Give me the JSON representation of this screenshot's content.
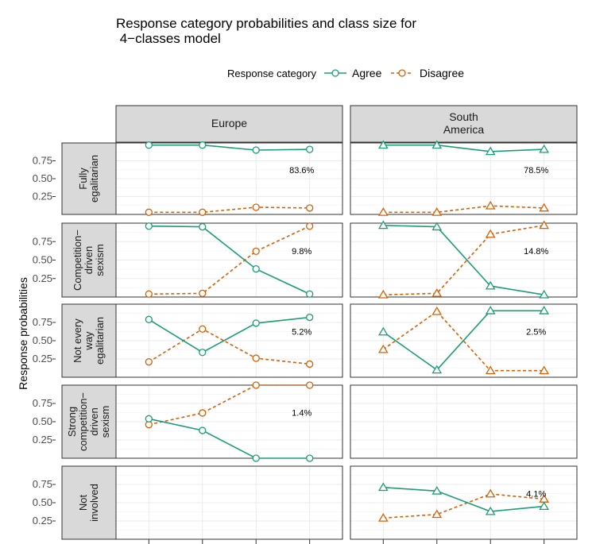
{
  "chart_data": {
    "type": "line",
    "title": "Response category probabilities and class size for\n 4−classes model",
    "ylabel": "Response probabilities",
    "legend": {
      "title": "Response category",
      "placement": "top",
      "entries": [
        {
          "name": "Agree",
          "color": "#1b9e77",
          "linestyle": "solid"
        },
        {
          "name": "Disagree",
          "color": "#d95f02",
          "linestyle": "dashed"
        }
      ]
    },
    "columns": [
      {
        "label": "Europe",
        "marker": "circle"
      },
      {
        "label": "South\nAmerica",
        "marker": "triangle"
      }
    ],
    "rows": [
      {
        "label": "Fully\negalitarian"
      },
      {
        "label": "Competition−\ndriven\nsexism"
      },
      {
        "label": "Not every\nway\negalitarian"
      },
      {
        "label": "Strong\ncompetition−\ndriven\nsexism"
      },
      {
        "label": "Not\ninvolved"
      }
    ],
    "ylim": [
      0,
      1
    ],
    "yticks": [
      0.25,
      0.5,
      0.75
    ],
    "ytick_labels": [
      "0.25",
      "0.50",
      "0.75"
    ],
    "x": [
      1,
      2,
      3,
      4
    ],
    "grid": true,
    "panels": [
      {
        "row": 0,
        "col": 0,
        "class_size": "83.6%",
        "agree": [
          0.97,
          0.97,
          0.9,
          0.91
        ],
        "disagree": [
          0.03,
          0.03,
          0.1,
          0.09
        ]
      },
      {
        "row": 0,
        "col": 1,
        "class_size": "78.5%",
        "agree": [
          0.97,
          0.97,
          0.88,
          0.91
        ],
        "disagree": [
          0.03,
          0.03,
          0.12,
          0.09
        ]
      },
      {
        "row": 1,
        "col": 0,
        "class_size": "9.8%",
        "agree": [
          0.96,
          0.95,
          0.38,
          0.04
        ],
        "disagree": [
          0.04,
          0.05,
          0.62,
          0.96
        ]
      },
      {
        "row": 1,
        "col": 1,
        "class_size": "14.8%",
        "agree": [
          0.97,
          0.95,
          0.15,
          0.03
        ],
        "disagree": [
          0.03,
          0.05,
          0.85,
          0.97
        ]
      },
      {
        "row": 2,
        "col": 0,
        "class_size": "5.2%",
        "agree": [
          0.79,
          0.34,
          0.74,
          0.82
        ],
        "disagree": [
          0.21,
          0.66,
          0.26,
          0.18
        ]
      },
      {
        "row": 2,
        "col": 1,
        "class_size": "2.5%",
        "agree": [
          0.62,
          0.1,
          0.91,
          0.91
        ],
        "disagree": [
          0.38,
          0.9,
          0.09,
          0.09
        ]
      },
      {
        "row": 3,
        "col": 0,
        "class_size": "1.4%",
        "agree": [
          0.54,
          0.38,
          0.0,
          0.0
        ],
        "disagree": [
          0.46,
          0.62,
          1.0,
          1.0
        ]
      },
      {
        "row": 4,
        "col": 1,
        "class_size": "4.1%",
        "agree": [
          0.71,
          0.66,
          0.38,
          0.45
        ],
        "disagree": [
          0.29,
          0.34,
          0.62,
          0.55
        ]
      }
    ]
  }
}
